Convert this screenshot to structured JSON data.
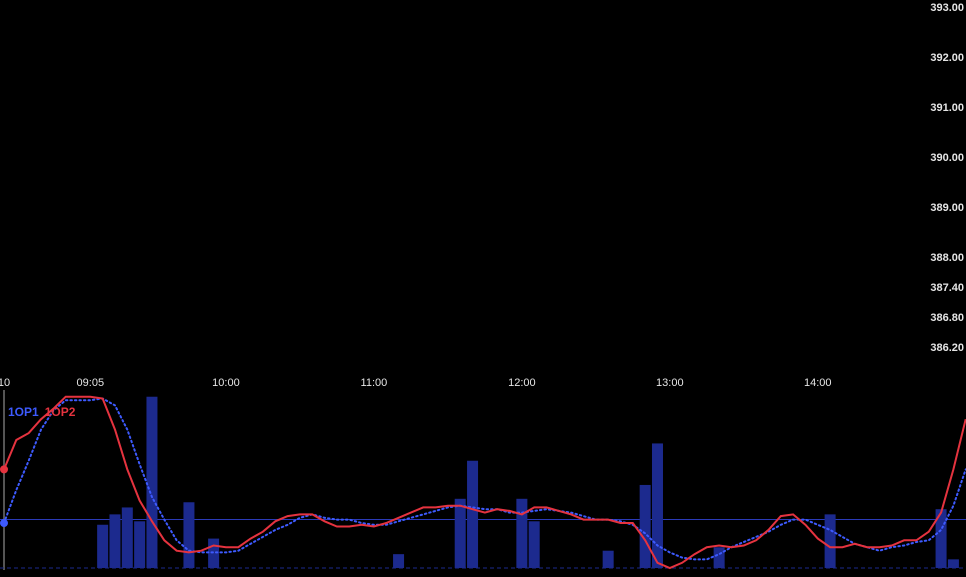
{
  "chart_data": [
    {
      "type": "price-axis",
      "ylim": [
        385.76,
        393.16
      ],
      "yticks": [
        {
          "value": 393,
          "label": "393.00"
        },
        {
          "value": 392,
          "label": "392.00"
        },
        {
          "value": 391,
          "label": "391.00"
        },
        {
          "value": 390,
          "label": "390.00"
        },
        {
          "value": 389,
          "label": "389.00"
        },
        {
          "value": 388,
          "label": "388.00"
        },
        {
          "value": 387.4,
          "label": "387.40"
        },
        {
          "value": 386.8,
          "label": "386.80"
        },
        {
          "value": 386.2,
          "label": "386.20"
        }
      ]
    },
    {
      "type": "combo",
      "categories": [
        "10",
        null,
        null,
        null,
        null,
        null,
        null,
        "09:05",
        null,
        null,
        null,
        null,
        null,
        null,
        null,
        null,
        null,
        null,
        "10:00",
        null,
        null,
        null,
        null,
        null,
        null,
        null,
        null,
        null,
        null,
        null,
        "11:00",
        null,
        null,
        null,
        null,
        null,
        null,
        null,
        null,
        null,
        null,
        null,
        "12:00",
        null,
        null,
        null,
        null,
        null,
        null,
        null,
        null,
        null,
        null,
        null,
        "13:00",
        null,
        null,
        null,
        null,
        null,
        null,
        null,
        null,
        null,
        null,
        null,
        "14:00",
        null,
        null,
        null,
        null,
        null,
        null,
        null,
        null,
        null,
        null,
        null,
        null
      ],
      "ylim": [
        0,
        100
      ],
      "reference_line": 28,
      "series": [
        {
          "kind": "bar",
          "color": "#1c2a8e",
          "values": [
            null,
            null,
            null,
            null,
            null,
            null,
            null,
            null,
            25,
            31,
            35,
            27,
            99,
            null,
            null,
            38,
            null,
            17,
            null,
            null,
            null,
            null,
            null,
            null,
            null,
            null,
            null,
            null,
            null,
            null,
            null,
            null,
            8,
            null,
            null,
            null,
            null,
            40,
            62,
            null,
            null,
            null,
            40,
            27,
            null,
            null,
            null,
            null,
            null,
            10,
            null,
            null,
            48,
            72,
            null,
            null,
            null,
            null,
            12,
            null,
            null,
            null,
            null,
            null,
            null,
            null,
            null,
            31,
            null,
            null,
            null,
            null,
            null,
            null,
            null,
            null,
            34,
            5,
            null
          ]
        },
        {
          "kind": "line",
          "style": "dotted",
          "name": "1OP1",
          "color": "#3d5afe",
          "values": [
            26,
            45,
            62,
            80,
            91,
            97,
            97,
            97,
            98,
            94,
            80,
            60,
            41,
            28,
            16,
            10,
            9,
            9,
            9,
            10,
            14,
            18,
            22,
            25,
            29,
            31,
            29,
            28,
            28,
            26,
            25,
            25,
            27,
            29,
            31,
            33,
            35,
            36,
            35,
            34,
            34,
            32,
            32,
            33,
            34,
            33,
            32,
            30,
            28,
            28,
            27,
            25,
            20,
            13,
            9,
            6,
            5,
            5,
            8,
            12,
            15,
            18,
            21,
            25,
            28,
            28,
            25,
            22,
            18,
            14,
            12,
            10,
            12,
            13,
            15,
            16,
            22,
            36,
            57
          ]
        },
        {
          "kind": "line",
          "style": "solid",
          "name": "1OP2",
          "color": "#e5333f",
          "values": [
            57,
            74,
            78,
            86,
            92,
            99,
            99,
            99,
            98,
            80,
            57,
            39,
            27,
            16,
            10,
            9,
            10,
            13,
            12,
            12,
            17,
            21,
            27,
            30,
            31,
            31,
            27,
            24,
            24,
            25,
            24,
            26,
            29,
            32,
            35,
            35,
            36,
            36,
            34,
            32,
            34,
            33,
            31,
            35,
            35,
            33,
            31,
            28,
            28,
            28,
            26,
            26,
            16,
            3,
            0,
            3,
            8,
            12,
            13,
            12,
            13,
            16,
            22,
            30,
            31,
            25,
            17,
            12,
            12,
            14,
            12,
            12,
            13,
            16,
            16,
            21,
            32,
            57,
            86
          ]
        }
      ]
    }
  ]
}
